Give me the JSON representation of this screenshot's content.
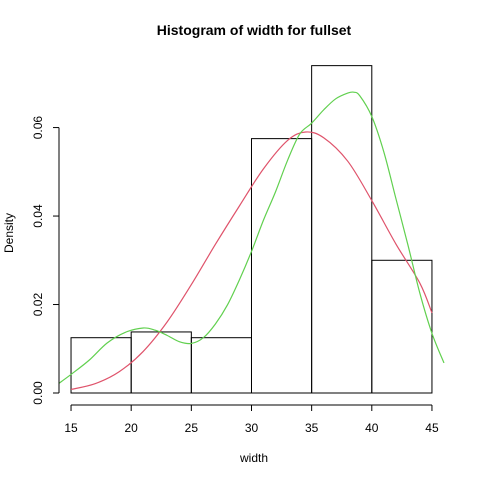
{
  "chart_data": {
    "type": "bar",
    "title": "Histogram of width for fullset",
    "xlabel": "width",
    "ylabel": "Density",
    "xlim": [
      14,
      46.5
    ],
    "ylim": [
      0,
      0.0755
    ],
    "x_ticks": [
      15,
      20,
      25,
      30,
      35,
      40,
      45
    ],
    "x_tick_labels": [
      "15",
      "20",
      "25",
      "30",
      "35",
      "40",
      "45"
    ],
    "y_ticks": [
      0,
      0.02,
      0.04,
      0.06
    ],
    "y_tick_labels": [
      "0.00",
      "0.02",
      "0.04",
      "0.06"
    ],
    "bins": [
      {
        "start": 15,
        "end": 20,
        "density": 0.0125
      },
      {
        "start": 20,
        "end": 25,
        "density": 0.0138
      },
      {
        "start": 25,
        "end": 30,
        "density": 0.0125
      },
      {
        "start": 30,
        "end": 35,
        "density": 0.0575
      },
      {
        "start": 35,
        "end": 40,
        "density": 0.074
      },
      {
        "start": 40,
        "end": 45,
        "density": 0.03
      }
    ],
    "series": [
      {
        "type": "line",
        "color": "#df536b",
        "x": [
          15,
          17,
          19,
          21,
          23,
          25,
          27,
          29,
          31,
          33,
          34.5,
          36,
          38,
          40,
          42,
          44,
          45
        ],
        "y": [
          0.0008,
          0.0021,
          0.0048,
          0.0094,
          0.0161,
          0.0245,
          0.0336,
          0.0423,
          0.0507,
          0.0571,
          0.059,
          0.0577,
          0.0524,
          0.0435,
          0.0337,
          0.0248,
          0.0181
        ]
      },
      {
        "type": "line",
        "color": "#61d04f",
        "x": [
          14,
          15,
          16.5,
          18,
          19.5,
          21,
          22,
          23,
          24,
          25,
          26,
          27,
          28,
          29,
          30,
          31,
          32,
          33,
          34,
          35,
          36,
          37,
          38,
          38.5,
          39,
          40,
          41,
          42,
          43,
          44,
          45,
          46
        ],
        "y": [
          0.0022,
          0.0042,
          0.0074,
          0.0113,
          0.0137,
          0.0147,
          0.0142,
          0.013,
          0.0116,
          0.0112,
          0.0125,
          0.0156,
          0.0199,
          0.0256,
          0.032,
          0.0391,
          0.0455,
          0.0526,
          0.0585,
          0.061,
          0.064,
          0.0665,
          0.0678,
          0.068,
          0.0672,
          0.0625,
          0.0545,
          0.044,
          0.0335,
          0.0225,
          0.0135,
          0.0068
        ]
      }
    ]
  }
}
